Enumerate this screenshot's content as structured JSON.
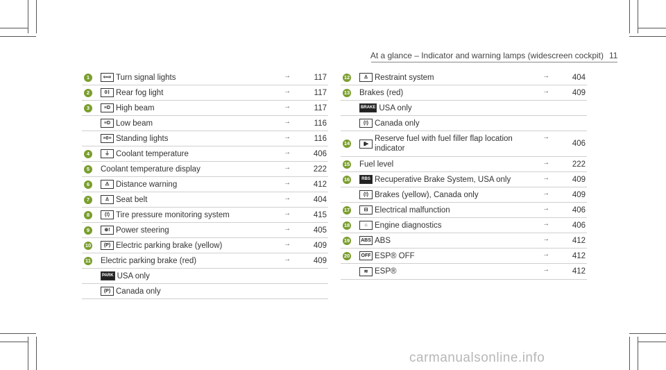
{
  "header": {
    "title": "At a glance – Indicator and warning lamps (widescreen cockpit)",
    "page_number": "11"
  },
  "left_rows": [
    {
      "num": "1",
      "icon": "turn-signal",
      "glyph": "⇦⇨",
      "text": "Turn signal lights",
      "page": "117"
    },
    {
      "num": "2",
      "icon": "rear-fog",
      "glyph": "0‡",
      "text": "Rear fog light",
      "page": "117"
    },
    {
      "num": "3",
      "icon": "high-beam",
      "glyph": "≡D",
      "text": "High beam",
      "page": "117"
    },
    {
      "num": "",
      "icon": "low-beam",
      "glyph": "≡D",
      "text": "Low beam",
      "page": "116"
    },
    {
      "num": "",
      "icon": "standing-lights",
      "glyph": "≡0≡",
      "text": "Standing lights",
      "page": "116"
    },
    {
      "num": "4",
      "icon": "coolant-temp",
      "glyph": "⏚",
      "text": "Coolant temperature",
      "page": "406"
    },
    {
      "num": "5",
      "icon": "",
      "glyph": "",
      "text": "Coolant temperature display",
      "page": "222"
    },
    {
      "num": "6",
      "icon": "distance-warning",
      "glyph": "⚠",
      "text": "Distance warning",
      "page": "412"
    },
    {
      "num": "7",
      "icon": "seat-belt",
      "glyph": "♙",
      "text": "Seat belt",
      "page": "404"
    },
    {
      "num": "8",
      "icon": "tire-pressure",
      "glyph": "(!)",
      "text": "Tire pressure monitoring system",
      "page": "415"
    },
    {
      "num": "9",
      "icon": "power-steering",
      "glyph": "⊛!",
      "text": "Power steering",
      "page": "405"
    },
    {
      "num": "10",
      "icon": "parking-brake",
      "glyph": "(P)",
      "text": "Electric parking brake (yellow)",
      "page": "409"
    },
    {
      "num": "11",
      "icon": "",
      "glyph": "",
      "text": "Electric parking brake (red)",
      "page": "409"
    },
    {
      "num": "",
      "icon": "park",
      "glyph": "PARK",
      "text": "USA only",
      "page": ""
    },
    {
      "num": "",
      "icon": "parking-brake-canada",
      "glyph": "(P)",
      "text": "Canada only",
      "page": ""
    }
  ],
  "right_rows": [
    {
      "num": "12",
      "icon": "restraint",
      "glyph": "♙",
      "text": "Restraint system",
      "page": "404"
    },
    {
      "num": "13",
      "icon": "",
      "glyph": "",
      "text": "Brakes (red)",
      "page": "409"
    },
    {
      "num": "",
      "icon": "brake",
      "glyph": "BRAKE",
      "text": "USA only",
      "page": ""
    },
    {
      "num": "",
      "icon": "brake-canada",
      "glyph": "(!)",
      "text": "Canada only",
      "page": ""
    },
    {
      "num": "14",
      "icon": "fuel",
      "glyph": "▮▸",
      "text": "Reserve fuel with fuel filler flap location indicator",
      "page": "406"
    },
    {
      "num": "15",
      "icon": "",
      "glyph": "",
      "text": "Fuel level",
      "page": "222"
    },
    {
      "num": "16",
      "icon": "rbs",
      "glyph": "RBS",
      "text": "Recuperative Brake System, USA only",
      "page": "409"
    },
    {
      "num": "",
      "icon": "brakes-yellow",
      "glyph": "(!)",
      "text": "Brakes (yellow), Canada only",
      "page": "409"
    },
    {
      "num": "17",
      "icon": "battery",
      "glyph": "⊟",
      "text": "Electrical malfunction",
      "page": "406"
    },
    {
      "num": "18",
      "icon": "engine",
      "glyph": "⌂",
      "text": "Engine diagnostics",
      "page": "406"
    },
    {
      "num": "19",
      "icon": "abs",
      "glyph": "ABS",
      "text": "ABS",
      "page": "412"
    },
    {
      "num": "20",
      "icon": "esp-off",
      "glyph": "OFF",
      "text": "ESP® OFF",
      "page": "412"
    },
    {
      "num": "",
      "icon": "esp",
      "glyph": "≋",
      "text": "ESP®",
      "page": "412"
    }
  ],
  "watermark": "carmanualsonline.info"
}
